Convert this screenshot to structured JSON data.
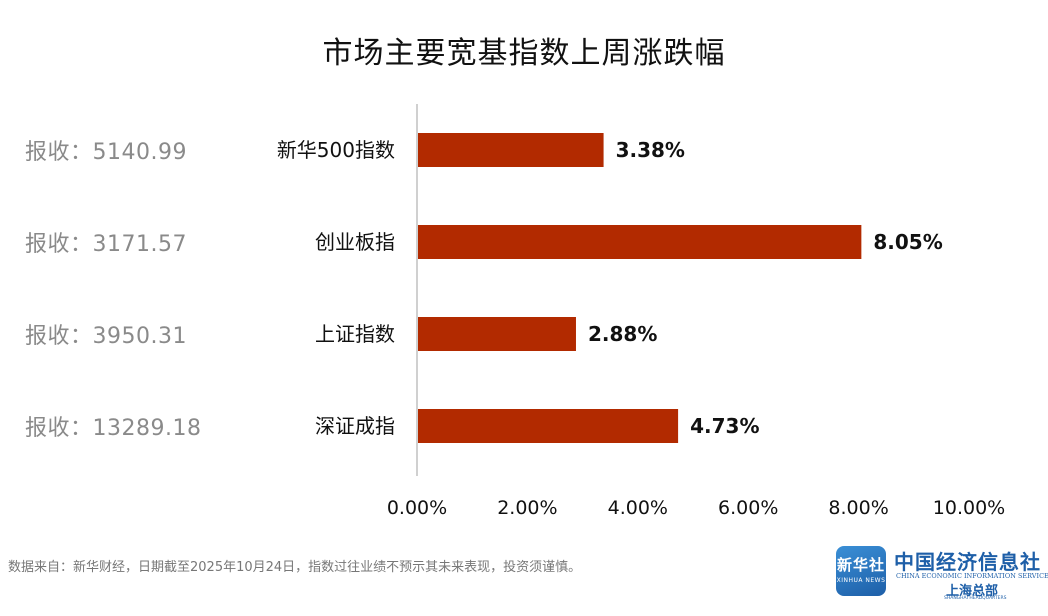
{
  "title": "市场主要宽基指数上周涨跌幅",
  "close_labels": [
    "报收：5140.99",
    "报收：3171.57",
    "报收：3950.31",
    "报收：13289.18"
  ],
  "chart_data": {
    "type": "bar",
    "orientation": "horizontal",
    "categories": [
      "新华500指数",
      "创业板指",
      "上证指数",
      "深证成指"
    ],
    "values": [
      3.38,
      8.05,
      2.88,
      4.73
    ],
    "value_labels": [
      "3.38%",
      "8.05%",
      "2.88%",
      "4.73%"
    ],
    "xlim": [
      0,
      10
    ],
    "x_ticks": [
      "0.00%",
      "2.00%",
      "4.00%",
      "6.00%",
      "8.00%",
      "10.00%"
    ],
    "grid": false,
    "bar_color": "#b22a00"
  },
  "footer": "数据来自：新华财经，日期截至2025年10月24日，指数过往业绩不预示其未来表现，投资须谨慎。",
  "logo": {
    "icon_text": "新华社",
    "icon_en": "XINHUA NEWS",
    "org_name": "中国经济信息社",
    "org_en": "CHINA ECONOMIC INFORMATION SERVICE",
    "branch": "上海总部",
    "branch_en": "SHANGHAI HEADQUARTERS"
  }
}
